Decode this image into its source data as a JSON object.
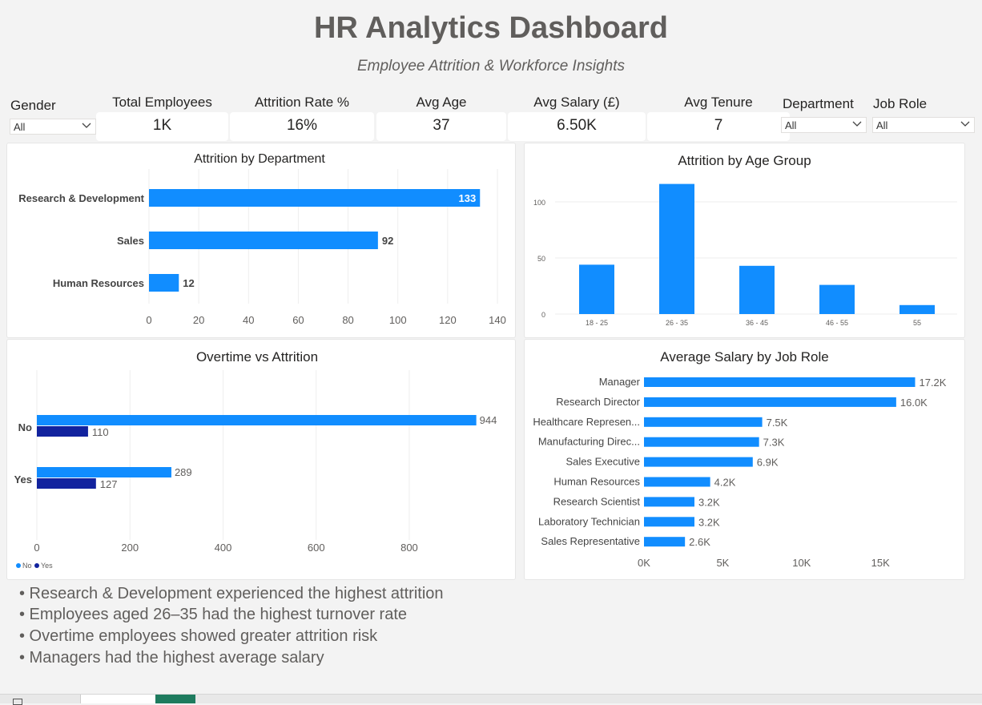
{
  "header": {
    "title": "HR Analytics Dashboard",
    "subtitle": "Employee Attrition & Workforce Insights"
  },
  "filters": {
    "gender": {
      "label": "Gender",
      "value": "All"
    },
    "department": {
      "label": "Department",
      "value": "All"
    },
    "job_role": {
      "label": "Job Role",
      "value": "All"
    }
  },
  "kpis": [
    {
      "label": "Total Employees",
      "value": "1K"
    },
    {
      "label": "Attrition Rate %",
      "value": "16%"
    },
    {
      "label": "Avg Age",
      "value": "37"
    },
    {
      "label": "Avg Salary (£)",
      "value": "6.50K"
    },
    {
      "label": "Avg Tenure",
      "value": "7"
    }
  ],
  "colors": {
    "primary": "#118dff",
    "secondary": "#12239e",
    "background": "#f3f3f3"
  },
  "chart_data": [
    {
      "type": "bar",
      "orientation": "horizontal",
      "title": "Attrition by Department",
      "categories": [
        "Research & Development",
        "Sales",
        "Human Resources"
      ],
      "values": [
        133,
        92,
        12
      ],
      "labels": [
        "133",
        "92",
        "12"
      ],
      "xlim": [
        0,
        140
      ],
      "xticks": [
        "0",
        "20",
        "40",
        "60",
        "80",
        "100",
        "120",
        "140"
      ],
      "grid": true
    },
    {
      "type": "bar",
      "title": "Attrition by Age Group",
      "categories": [
        "18 - 25",
        "26 - 35",
        "36 - 45",
        "46 - 55",
        "55"
      ],
      "values": [
        44,
        116,
        43,
        26,
        8
      ],
      "ylim": [
        0,
        120
      ],
      "yticks": [
        "0",
        "50",
        "100"
      ],
      "grid": true
    },
    {
      "type": "bar",
      "orientation": "horizontal",
      "title": "Overtime vs Attrition",
      "categories": [
        "No",
        "Yes"
      ],
      "series": [
        {
          "name": "No",
          "values": [
            944,
            289
          ],
          "labels": [
            "944",
            "289"
          ]
        },
        {
          "name": "Yes",
          "values": [
            110,
            127
          ],
          "labels": [
            "110",
            "127"
          ]
        }
      ],
      "xlim": [
        0,
        950
      ],
      "xticks": [
        "0",
        "200",
        "400",
        "600",
        "800"
      ],
      "legend": [
        "No",
        "Yes"
      ],
      "legend_position": "bottom-left",
      "grid": true
    },
    {
      "type": "bar",
      "orientation": "horizontal",
      "title": "Average Salary by Job Role",
      "categories": [
        "Manager",
        "Research Director",
        "Healthcare Represen...",
        "Manufacturing Direc...",
        "Sales Executive",
        "Human Resources",
        "Research Scientist",
        "Laboratory Technician",
        "Sales Representative"
      ],
      "values": [
        17200,
        16000,
        7500,
        7300,
        6900,
        4200,
        3200,
        3200,
        2600
      ],
      "labels": [
        "17.2K",
        "16.0K",
        "7.5K",
        "7.3K",
        "6.9K",
        "4.2K",
        "3.2K",
        "3.2K",
        "2.6K"
      ],
      "xlim": [
        0,
        17500
      ],
      "xticks": [
        "0K",
        "5K",
        "10K",
        "15K"
      ],
      "grid": false
    }
  ],
  "insights": [
    "• Research & Development experienced the highest attrition",
    "• Employees aged 26–35 had the highest turnover rate",
    "• Overtime employees showed greater attrition risk",
    "• Managers had the highest average salary"
  ]
}
